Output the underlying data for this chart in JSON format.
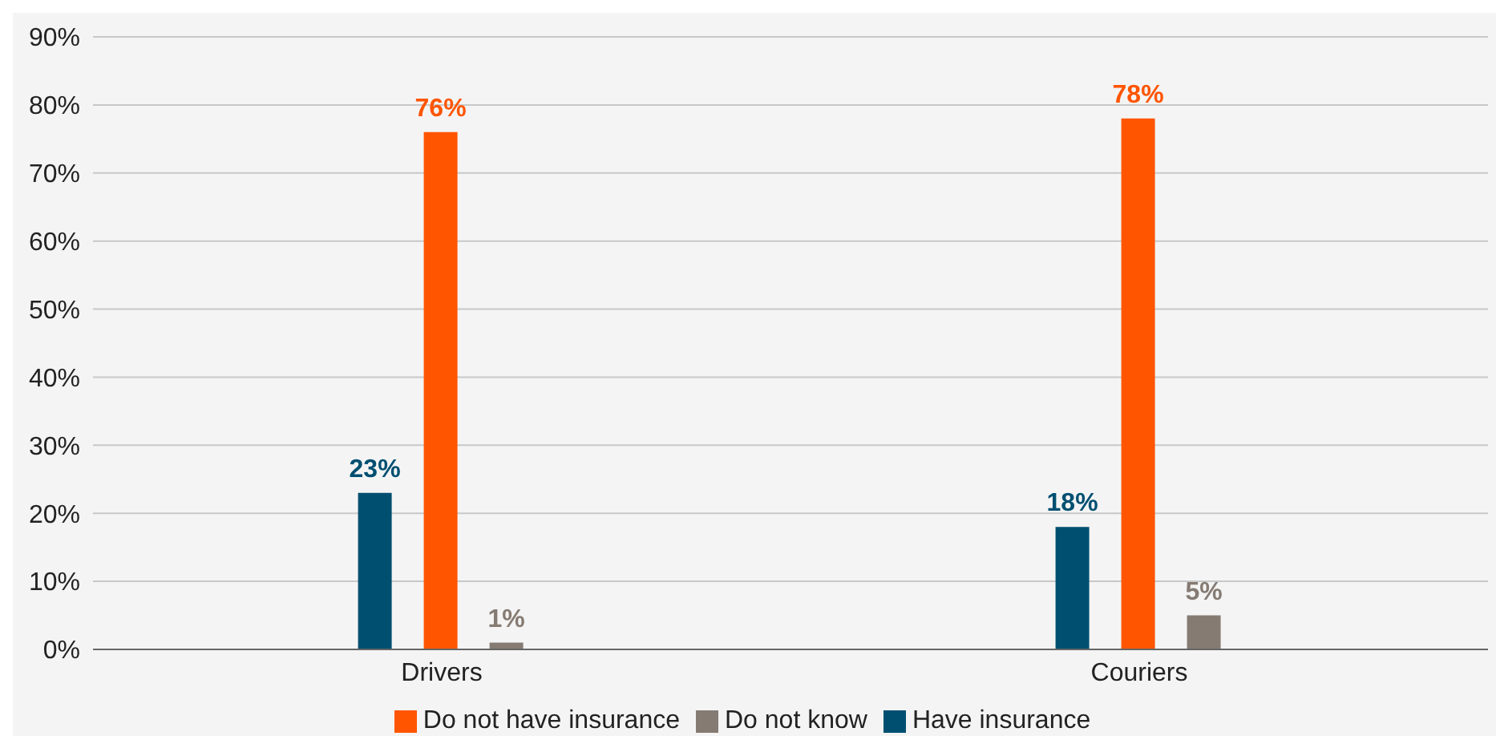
{
  "chart_data": {
    "type": "bar",
    "categories": [
      "Drivers",
      "Couriers"
    ],
    "series": [
      {
        "name": "Have insurance",
        "color": "#004f71",
        "values": [
          23,
          18
        ],
        "value_labels": [
          "23%",
          "18%"
        ]
      },
      {
        "name": "Do not have insurance",
        "color": "#ff5500",
        "values": [
          76,
          78
        ],
        "value_labels": [
          "76%",
          "78%"
        ]
      },
      {
        "name": "Do not know",
        "color": "#857b73",
        "values": [
          1,
          5
        ],
        "value_labels": [
          "1%",
          "5%"
        ]
      }
    ],
    "ylim": [
      0,
      90
    ],
    "yticks": [
      {
        "value": 0,
        "label": "0%"
      },
      {
        "value": 10,
        "label": "10%"
      },
      {
        "value": 20,
        "label": "20%"
      },
      {
        "value": 30,
        "label": "30%"
      },
      {
        "value": 40,
        "label": "40%"
      },
      {
        "value": 50,
        "label": "50%"
      },
      {
        "value": 60,
        "label": "60%"
      },
      {
        "value": 70,
        "label": "70%"
      },
      {
        "value": 80,
        "label": "80%"
      },
      {
        "value": 90,
        "label": "90%"
      }
    ],
    "grid": "y",
    "legend": "bottom"
  }
}
